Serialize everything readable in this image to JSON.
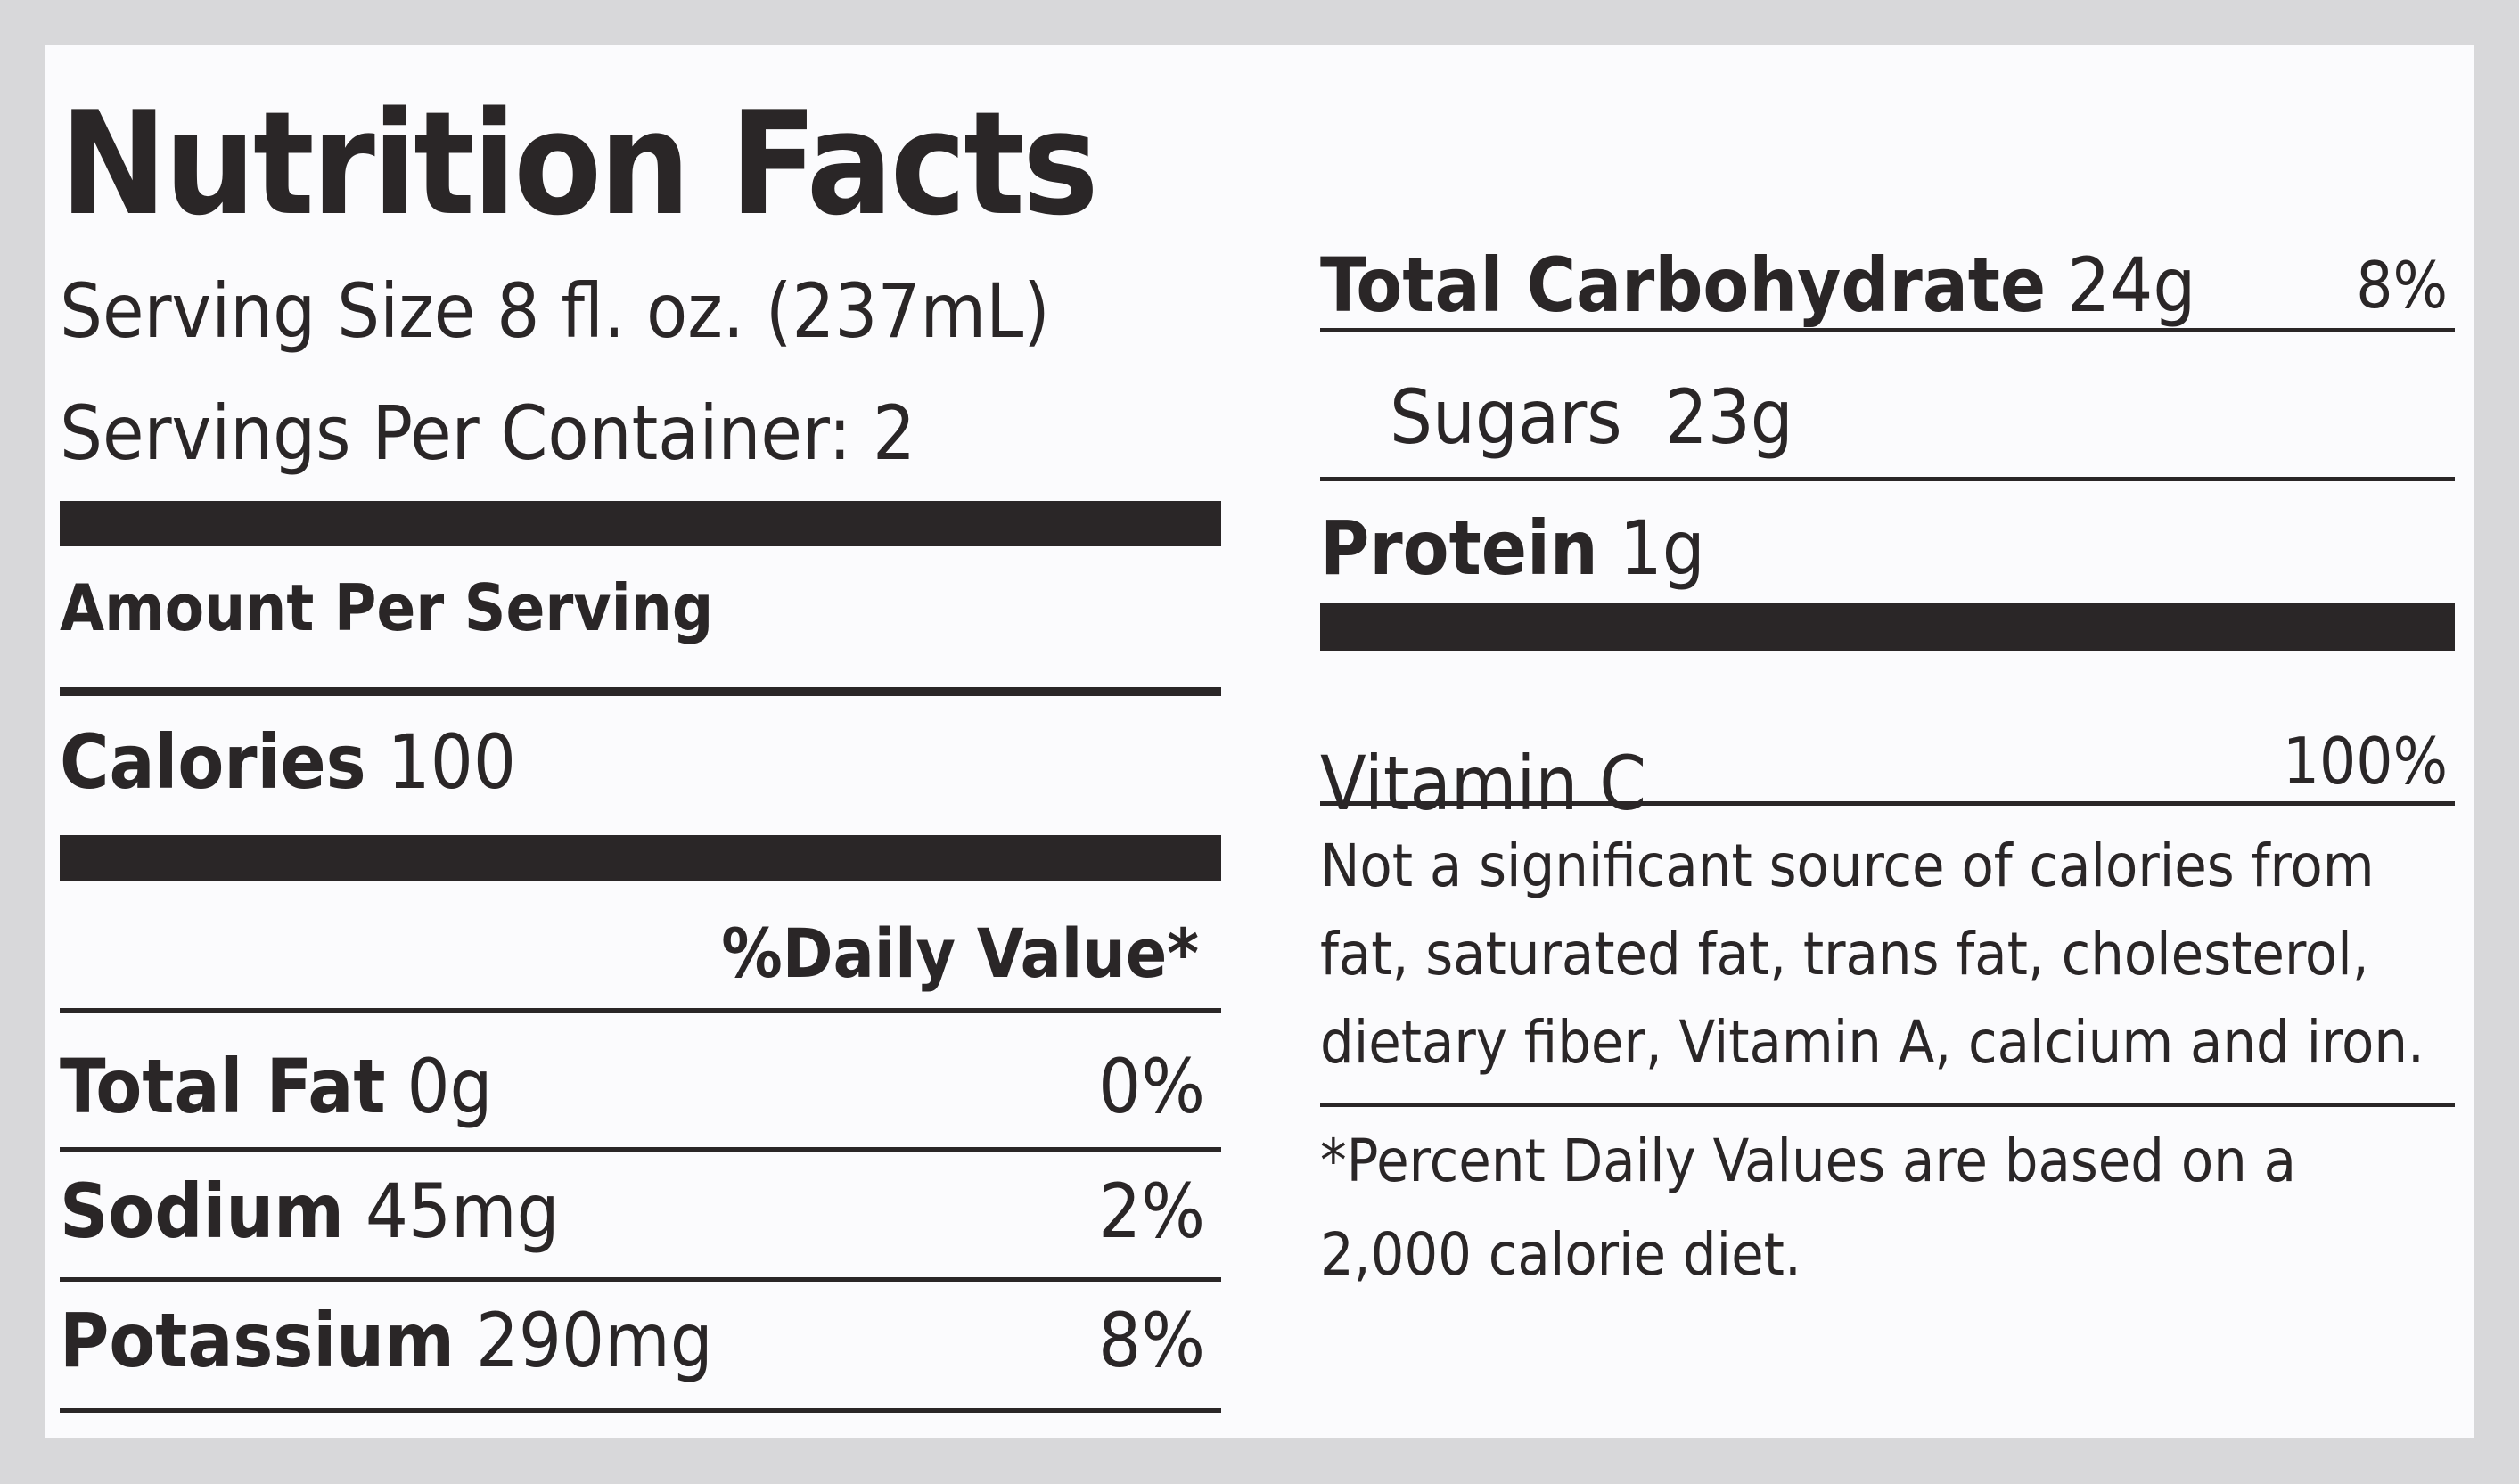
{
  "title": "Nutrition Facts",
  "serving_size": "Serving Size 8 fl. oz. (237mL)",
  "servings_per_container": "Servings Per Container: 2",
  "amount_per_serving": "Amount Per Serving",
  "calories": {
    "label": "Calories",
    "amount": "100"
  },
  "daily_value_header": "%Daily Value*",
  "nutrients": [
    {
      "label": "Total Fat",
      "amount": "0g",
      "daily_value": "0%"
    },
    {
      "label": "Sodium",
      "amount": "45mg",
      "daily_value": "2%"
    },
    {
      "label": "Potassium",
      "amount": "290mg",
      "daily_value": "8%"
    },
    {
      "label": "Total Carbohydrate",
      "amount": "24g",
      "daily_value": "8%"
    },
    {
      "label": "Sugars",
      "amount": "23g"
    },
    {
      "label": "Protein",
      "amount": "1g"
    }
  ],
  "vitamins": [
    {
      "label": "Vitamin C",
      "daily_value": "100%"
    }
  ],
  "footnote_not_significant": "Not a significant source of calories from fat, saturated fat, trans fat, cholesterol, dietary fiber, Vitamin A, calcium and iron.",
  "footnote_daily_values": "*Percent Daily Values are based on a 2,000 calorie diet."
}
